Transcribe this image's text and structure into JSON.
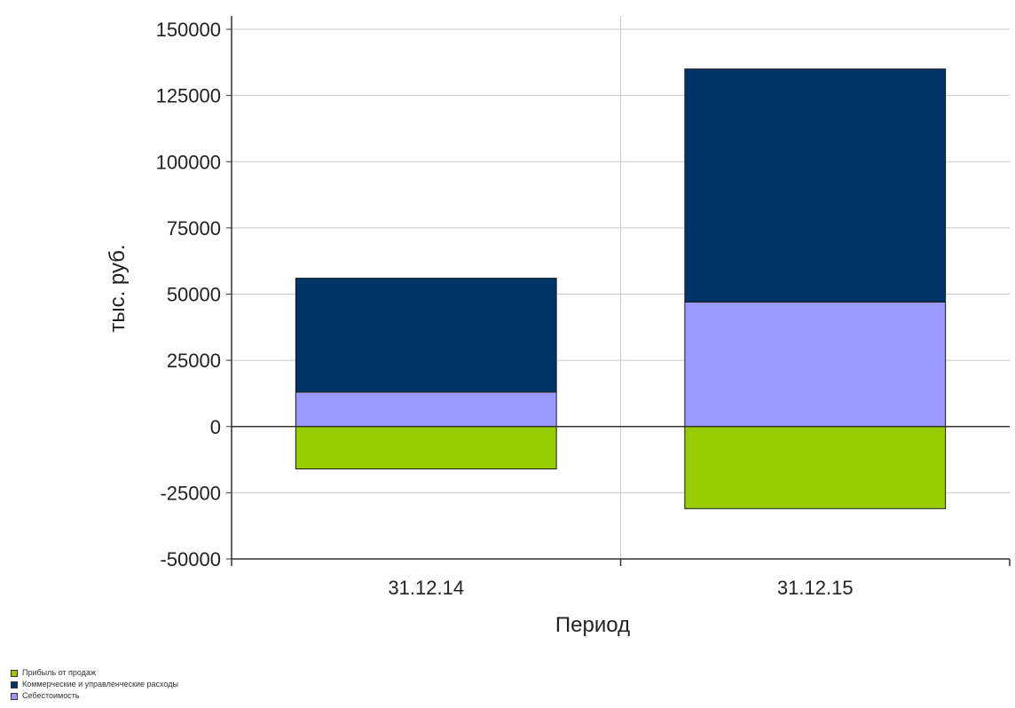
{
  "chart_data": {
    "type": "bar",
    "stacked": true,
    "categories": [
      "31.12.14",
      "31.12.15"
    ],
    "series": [
      {
        "name": "Прибыль от продаж",
        "values": [
          -16000,
          -31000
        ],
        "color": "#99cc00"
      },
      {
        "name": "Себестоимость",
        "values": [
          13000,
          47000
        ],
        "color": "#9999ff"
      },
      {
        "name": "Коммерческие и управленческие расходы",
        "values": [
          43000,
          88000
        ],
        "color": "#003366"
      }
    ],
    "xlabel": "Период",
    "ylabel": "тыс. руб.",
    "ylim": [
      -50000,
      150000
    ],
    "yticks": [
      150000,
      125000,
      100000,
      75000,
      50000,
      25000,
      0,
      -25000,
      -50000
    ],
    "grid": true,
    "legend_position": "bottom-left"
  },
  "legend": {
    "items": [
      {
        "label": "Прибыль от продаж",
        "color": "#99cc00"
      },
      {
        "label": "Коммерческие и управленческие расходы",
        "color": "#003366"
      },
      {
        "label": "Себестоимость",
        "color": "#9999ff"
      }
    ]
  }
}
